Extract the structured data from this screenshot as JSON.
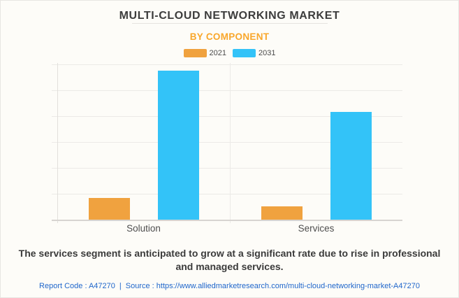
{
  "page": {
    "background_color": "#FDFCF8",
    "border_color": "#E8E6E2"
  },
  "header": {
    "title": "MULTI-CLOUD NETWORKING MARKET",
    "subtitle": "BY COMPONENT",
    "title_color": "#3C3C3C",
    "subtitle_color": "#F9A72B"
  },
  "chart_data": {
    "type": "bar",
    "title": "MULTI-CLOUD NETWORKING MARKET",
    "subtitle": "BY COMPONENT",
    "categories": [
      "Solution",
      "Services"
    ],
    "series": [
      {
        "name": "2021",
        "color": "#F0A23F",
        "values": [
          14,
          8.6
        ]
      },
      {
        "name": "2031",
        "color": "#33C3F8",
        "values": [
          96,
          69.4
        ]
      }
    ],
    "xlabel": "",
    "ylabel": "",
    "ylim": [
      0,
      100
    ],
    "y_units": "relative bar height, percent of plot scale (no y-axis tick labels shown in image)",
    "grid": "horizontal gridlines on, 6 intervals",
    "grid_intervals": 6,
    "legend_position": "top-center",
    "legend_entries": [
      "2021",
      "2031"
    ],
    "gridline_color": "#ECEAE7",
    "axis_color": "#D7D4D1"
  },
  "notes": {
    "description": "The services segment is anticipated to grow at a significant rate due to rise in professional and managed services."
  },
  "footer": {
    "report_code_label": "Report Code : A47270",
    "separator": "|",
    "source_label": "Source :",
    "source_url": "https://www.alliedmarketresearch.com/multi-cloud-networking-market-A47270",
    "link_color": "#1F66CB"
  }
}
